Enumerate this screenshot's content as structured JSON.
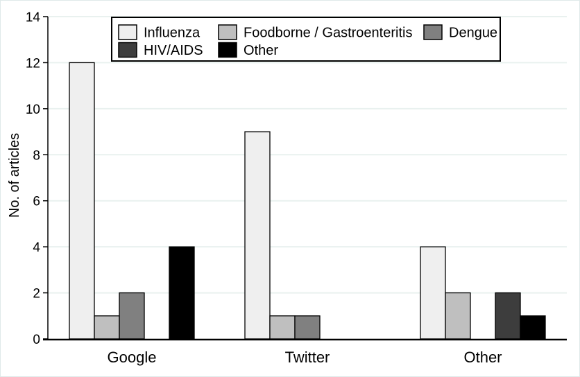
{
  "chart_data": {
    "type": "bar",
    "title": "",
    "xlabel": "",
    "ylabel": "No. of articles",
    "categories": [
      "Google",
      "Twitter",
      "Other"
    ],
    "series": [
      {
        "name": "Influenza",
        "color": "#efefef",
        "values": [
          12,
          9,
          4
        ]
      },
      {
        "name": "Foodborne / Gastroenteritis",
        "color": "#bfbfbf",
        "values": [
          1,
          1,
          2
        ]
      },
      {
        "name": "Dengue",
        "color": "#808080",
        "values": [
          2,
          1,
          0
        ]
      },
      {
        "name": "HIV/AIDS",
        "color": "#3d3d3d",
        "values": [
          0,
          0,
          2
        ]
      },
      {
        "name": "Other",
        "color": "#000000",
        "values": [
          4,
          0,
          1
        ]
      }
    ],
    "ylim": [
      0,
      14
    ],
    "ytick_step": 2,
    "ytick_labels": [
      "0",
      "2",
      "4",
      "6",
      "8",
      "10",
      "12",
      "14"
    ],
    "grid": true,
    "gridline_color": "#e9f1ef",
    "bar_border_color": "#000000",
    "axis_color": "#000000",
    "legend_position": "top",
    "legend_rows": [
      [
        "Influenza",
        "Foodborne / Gastroenteritis",
        "Dengue"
      ],
      [
        "HIV/AIDS",
        "Other"
      ]
    ]
  }
}
